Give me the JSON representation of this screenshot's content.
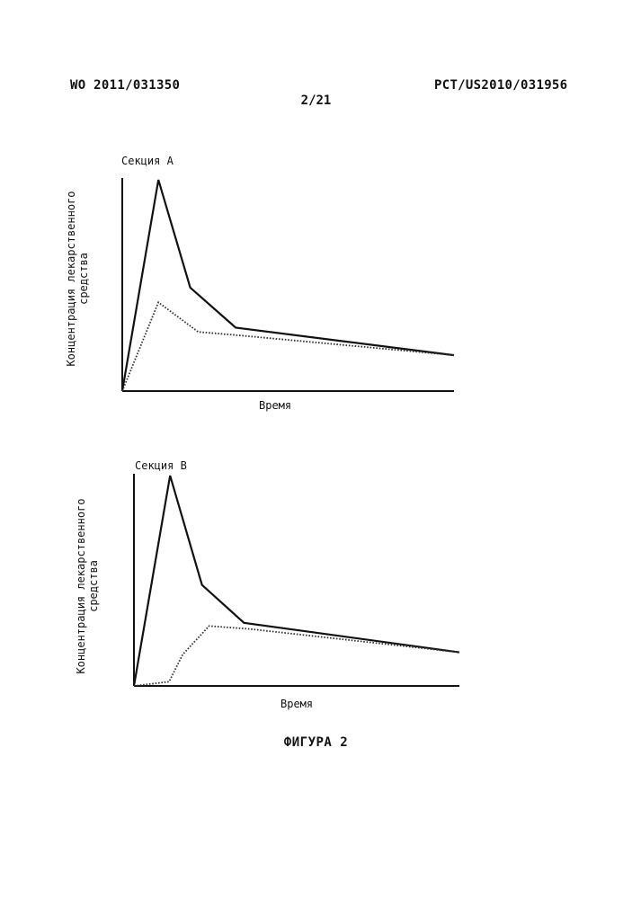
{
  "header": {
    "left": "WO 2011/031350",
    "right": "PCT/US2010/031956",
    "page": "2/21"
  },
  "caption": "ФИГУРА 2",
  "chart_data": [
    {
      "type": "line",
      "title": "Секция А",
      "xlabel": "Время",
      "ylabel": [
        "Концентрация лекарственного",
        "средства"
      ],
      "x_ticks": "none",
      "y_ticks": "none",
      "grid": false,
      "xlim": [
        0,
        100
      ],
      "ylim": [
        0,
        100
      ],
      "series": [
        {
          "style": "solid",
          "color": "#111111",
          "x": [
            0,
            10.9,
            20.5,
            34.2,
            100
          ],
          "y": [
            0,
            100,
            49,
            30,
            17
          ]
        },
        {
          "style": "dotted",
          "color": "#333333",
          "x": [
            0,
            10.9,
            22.9,
            34.2,
            100
          ],
          "y": [
            0,
            42,
            28,
            26.5,
            17
          ]
        }
      ]
    },
    {
      "type": "line",
      "title": "Секция В",
      "xlabel": "Время",
      "ylabel": [
        "Концентрация лекарственного",
        "средства"
      ],
      "x_ticks": "none",
      "y_ticks": "none",
      "grid": false,
      "xlim": [
        0,
        100
      ],
      "ylim": [
        0,
        100
      ],
      "series": [
        {
          "style": "solid",
          "color": "#111111",
          "x": [
            0,
            11.1,
            20.9,
            33.8,
            100
          ],
          "y": [
            0,
            100,
            48,
            30,
            16
          ]
        },
        {
          "style": "dotted",
          "color": "#333333",
          "x": [
            0,
            10.8,
            15,
            23.1,
            36,
            100
          ],
          "y": [
            0,
            2,
            15,
            28.5,
            27,
            16
          ]
        }
      ]
    }
  ]
}
